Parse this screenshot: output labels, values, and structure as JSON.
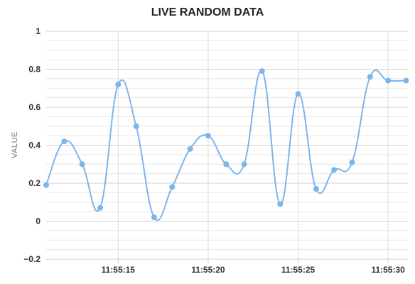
{
  "chart_data": {
    "type": "line",
    "title": "LIVE RANDOM DATA",
    "xlabel": "",
    "ylabel": "VALUE",
    "ylim": [
      -0.2,
      1
    ],
    "yticks": [
      "1",
      "0.8",
      "0.6",
      "0.4",
      "0.2",
      "0",
      "−0.2"
    ],
    "ytick_values": [
      1,
      0.8,
      0.6,
      0.4,
      0.2,
      0,
      -0.2
    ],
    "xticks": [
      "11:55:15",
      "11:55:20",
      "11:55:25",
      "11:55:30"
    ],
    "xtick_seconds": [
      15,
      20,
      25,
      30
    ],
    "xlim_seconds": [
      11.0,
      31.1
    ],
    "grid": true,
    "line_color": "#7cb5ec",
    "series": [
      {
        "name": "",
        "x_seconds": [
          11,
          12,
          13,
          14,
          15,
          16,
          17,
          18,
          19,
          20,
          21,
          22,
          23,
          24,
          25,
          26,
          27,
          28,
          29,
          30,
          31
        ],
        "x": [
          "11:55:11",
          "11:55:12",
          "11:55:13",
          "11:55:14",
          "11:55:15",
          "11:55:16",
          "11:55:17",
          "11:55:18",
          "11:55:19",
          "11:55:20",
          "11:55:21",
          "11:55:22",
          "11:55:23",
          "11:55:24",
          "11:55:25",
          "11:55:26",
          "11:55:27",
          "11:55:28",
          "11:55:29",
          "11:55:30",
          "11:55:31"
        ],
        "values": [
          0.19,
          0.42,
          0.3,
          0.07,
          0.72,
          0.5,
          0.02,
          0.18,
          0.38,
          0.45,
          0.3,
          0.3,
          0.79,
          0.09,
          0.67,
          0.17,
          0.27,
          0.31,
          0.76,
          0.74,
          0.74
        ]
      }
    ]
  }
}
